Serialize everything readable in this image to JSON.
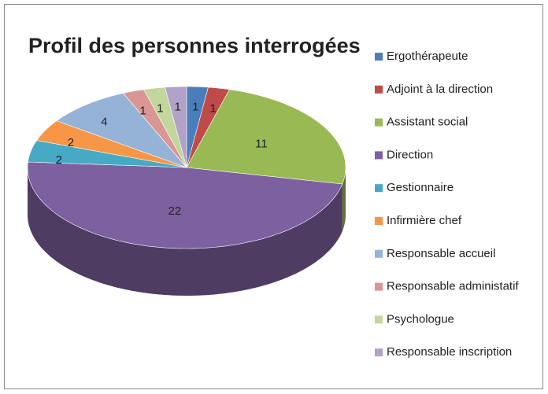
{
  "chart_data": {
    "type": "pie3d",
    "title": "Profil des personnes interrogées",
    "categories": [
      "Ergothérapeute",
      "Adjoint à la direction",
      "Assistant social",
      "Direction",
      "Gestionnaire",
      "Infirmière chef",
      "Responsable accueil",
      "Responsable administatif",
      "Psychologue",
      "Responsable inscription"
    ],
    "values": [
      1,
      1,
      11,
      22,
      2,
      2,
      4,
      1,
      1,
      1
    ],
    "colors": [
      "#4a7ebb",
      "#be4b48",
      "#98b954",
      "#7d60a0",
      "#46aac5",
      "#f79646",
      "#95b3d7",
      "#d99694",
      "#c3d69b",
      "#b3a2c7"
    ],
    "legend": "right"
  }
}
